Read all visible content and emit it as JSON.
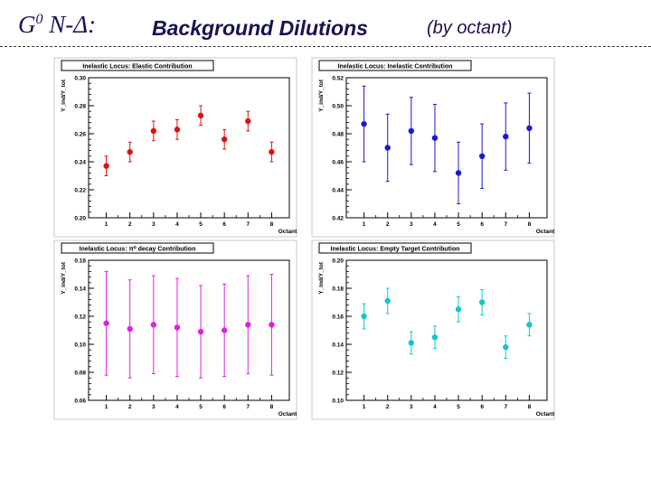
{
  "header": {
    "g0": "G",
    "g0_sup": "0",
    "reaction": " N-Δ:",
    "title": "Background Dilutions",
    "subtitle": "(by octant)"
  },
  "chart_data": [
    {
      "type": "scatter",
      "title": "Inelastic Locus: Elastic Contribution",
      "xlabel": "Octant",
      "ylabel": "Y_ind/Y_tot",
      "ylim": [
        0.2,
        0.3
      ],
      "yticks": [
        0.2,
        0.22,
        0.24,
        0.26,
        0.28,
        0.3
      ],
      "ytick_labels": [
        "0.20",
        "0.22",
        "0.24",
        "0.26",
        "0.28",
        "0.30"
      ],
      "x": [
        1,
        2,
        3,
        4,
        5,
        6,
        7,
        8
      ],
      "values": [
        0.237,
        0.247,
        0.262,
        0.263,
        0.273,
        0.256,
        0.269,
        0.247
      ],
      "errors": [
        0.007,
        0.007,
        0.007,
        0.007,
        0.007,
        0.007,
        0.007,
        0.007
      ],
      "color": "#e01010"
    },
    {
      "type": "scatter",
      "title": "Inelastic Locus: Inelastic Contribution",
      "xlabel": "Octant",
      "ylabel": "Y_ind/Y_tot",
      "ylim": [
        0.42,
        0.52
      ],
      "yticks": [
        0.42,
        0.44,
        0.46,
        0.48,
        0.5,
        0.52
      ],
      "ytick_labels": [
        "0.42",
        "0.44",
        "0.46",
        "0.48",
        "0.50",
        "0.52"
      ],
      "x": [
        1,
        2,
        3,
        4,
        5,
        6,
        7,
        8
      ],
      "values": [
        0.487,
        0.47,
        0.482,
        0.477,
        0.452,
        0.464,
        0.478,
        0.484
      ],
      "errors": [
        0.027,
        0.024,
        0.024,
        0.024,
        0.022,
        0.023,
        0.024,
        0.025
      ],
      "color": "#1a1ad0"
    },
    {
      "type": "scatter",
      "title": "Inelastic Locus: π⁰ decay Contribution",
      "xlabel": "Octant",
      "ylabel": "Y_ind/Y_tot",
      "ylim": [
        0.06,
        0.16
      ],
      "yticks": [
        0.06,
        0.08,
        0.1,
        0.12,
        0.14,
        0.16
      ],
      "ytick_labels": [
        "0.06",
        "0.08",
        "0.10",
        "0.12",
        "0.14",
        "0.16"
      ],
      "x": [
        1,
        2,
        3,
        4,
        5,
        6,
        7,
        8
      ],
      "values": [
        0.115,
        0.111,
        0.114,
        0.112,
        0.109,
        0.11,
        0.114,
        0.114
      ],
      "errors": [
        0.037,
        0.035,
        0.035,
        0.035,
        0.033,
        0.033,
        0.035,
        0.036
      ],
      "color": "#e020e0"
    },
    {
      "type": "scatter",
      "title": "Inelastic Locus: Empty Target Contribution",
      "xlabel": "Octant",
      "ylabel": "Y_ind/Y_tot",
      "ylim": [
        0.1,
        0.2
      ],
      "yticks": [
        0.1,
        0.12,
        0.14,
        0.16,
        0.18,
        0.2
      ],
      "ytick_labels": [
        "0.10",
        "0.12",
        "0.14",
        "0.16",
        "0.18",
        "0.20"
      ],
      "x": [
        1,
        2,
        3,
        4,
        5,
        6,
        7,
        8
      ],
      "values": [
        0.16,
        0.171,
        0.141,
        0.145,
        0.165,
        0.17,
        0.138,
        0.154
      ],
      "errors": [
        0.009,
        0.009,
        0.008,
        0.008,
        0.009,
        0.009,
        0.008,
        0.008
      ],
      "color": "#10c8c8"
    }
  ]
}
